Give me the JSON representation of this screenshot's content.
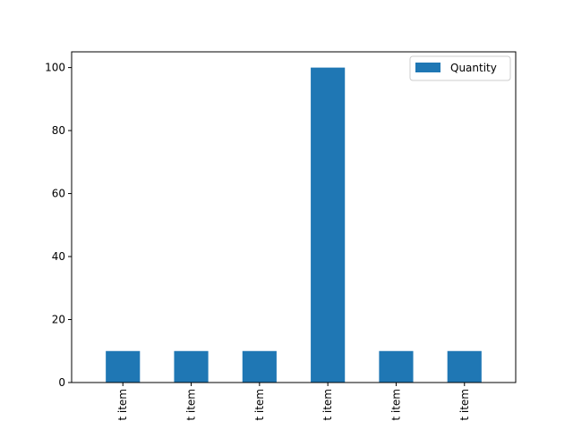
{
  "chart_data": {
    "type": "bar",
    "categories": [
      "t item",
      "t item",
      "t item",
      "t item",
      "t item",
      "t item"
    ],
    "series": [
      {
        "name": "Quantity",
        "values": [
          10,
          10,
          10,
          100,
          10,
          10
        ]
      }
    ],
    "ylim": [
      0,
      105
    ],
    "yticks": [
      0,
      20,
      40,
      60,
      80,
      100
    ],
    "grid": false,
    "legend_position": "top-right",
    "colors": {
      "bar": "#1f77b4"
    }
  }
}
